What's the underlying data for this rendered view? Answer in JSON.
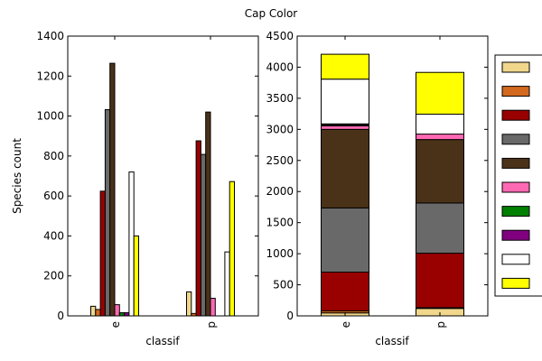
{
  "figure": {
    "title": "Cap Color"
  },
  "colors": {
    "cap_colors": [
      "#f0d78c",
      "#d2691e",
      "#990000",
      "#696969",
      "#4a3219",
      "#ff69b4",
      "#008000",
      "#800080",
      "#ffffff",
      "#ffff00"
    ]
  },
  "chart_data": [
    {
      "type": "bar",
      "categories": [
        "e",
        "p"
      ],
      "xlabel": "classif",
      "ylabel": "Species count",
      "ylim": [
        0,
        1400
      ],
      "yticks": [
        0,
        200,
        400,
        600,
        800,
        1000,
        1200,
        1400
      ],
      "series": [
        {
          "values": [
            48,
            120
          ]
        },
        {
          "values": [
            32,
            12
          ]
        },
        {
          "values": [
            624,
            876
          ]
        },
        {
          "values": [
            1032,
            808
          ]
        },
        {
          "values": [
            1264,
            1020
          ]
        },
        {
          "values": [
            56,
            88
          ]
        },
        {
          "values": [
            16,
            0
          ]
        },
        {
          "values": [
            16,
            0
          ]
        },
        {
          "values": [
            720,
            320
          ]
        },
        {
          "values": [
            400,
            672
          ]
        }
      ]
    },
    {
      "type": "bar",
      "stacked": true,
      "categories": [
        "e",
        "p"
      ],
      "xlabel": "classif",
      "ylim": [
        0,
        4500
      ],
      "yticks": [
        0,
        500,
        1000,
        1500,
        2000,
        2500,
        3000,
        3500,
        4000,
        4500
      ],
      "legend": "right, outside plot",
      "series": [
        {
          "values": [
            48,
            120
          ]
        },
        {
          "values": [
            32,
            12
          ]
        },
        {
          "values": [
            624,
            876
          ]
        },
        {
          "values": [
            1032,
            808
          ]
        },
        {
          "values": [
            1264,
            1020
          ]
        },
        {
          "values": [
            56,
            88
          ]
        },
        {
          "values": [
            16,
            0
          ]
        },
        {
          "values": [
            16,
            0
          ]
        },
        {
          "values": [
            720,
            320
          ]
        },
        {
          "values": [
            400,
            672
          ]
        }
      ]
    }
  ]
}
